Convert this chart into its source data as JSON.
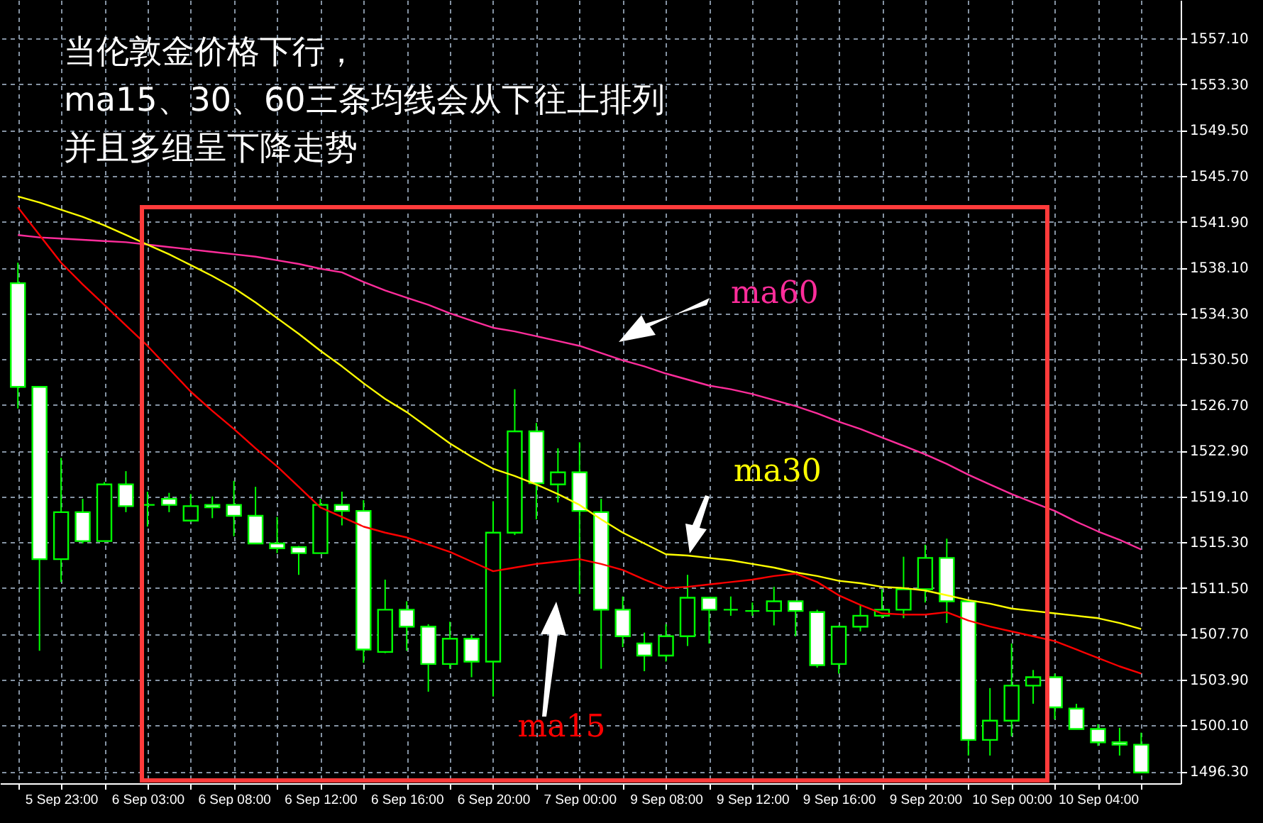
{
  "chart_data": {
    "type": "candlestick",
    "title": "当伦敦金价格下行，",
    "annotations": [
      "ma15、30、60三条均线会从下往上排列",
      "并且多组呈下降走势"
    ],
    "categories": [
      null,
      null,
      "5 Sep 23:00",
      null,
      null,
      null,
      "6 Sep 03:00",
      null,
      null,
      null,
      "6 Sep 08:00",
      null,
      null,
      null,
      "6 Sep 12:00",
      null,
      null,
      null,
      "6 Sep 16:00",
      null,
      null,
      null,
      "6 Sep 20:00",
      null,
      null,
      null,
      "7 Sep 00:00",
      null,
      null,
      null,
      "9 Sep 08:00",
      null,
      null,
      null,
      "9 Sep 12:00",
      null,
      null,
      null,
      "9 Sep 16:00",
      null,
      null,
      null,
      "9 Sep 20:00",
      null,
      null,
      null,
      "10 Sep 00:00",
      null,
      null,
      null,
      "10 Sep 04:00",
      null,
      null
    ],
    "ohlc": [
      [
        1536.8,
        1538.5,
        1526.4,
        1528.2
      ],
      [
        1528.2,
        1528.2,
        1506.3,
        1513.9
      ],
      [
        1513.9,
        1522.3,
        1512.0,
        1517.8
      ],
      [
        1517.8,
        1518.9,
        1515.2,
        1515.4
      ],
      [
        1515.4,
        1520.3,
        1515.4,
        1520.1
      ],
      [
        1520.1,
        1521.2,
        1517.8,
        1518.3
      ],
      [
        1518.4,
        1519.5,
        1516.6,
        1518.4
      ],
      [
        1518.9,
        1519.4,
        1517.8,
        1518.4
      ],
      [
        1517.1,
        1519.3,
        1517.0,
        1518.3
      ],
      [
        1518.4,
        1519.1,
        1517.3,
        1518.2
      ],
      [
        1518.4,
        1520.4,
        1515.8,
        1517.5
      ],
      [
        1517.5,
        1519.9,
        1515.2,
        1515.2
      ],
      [
        1515.2,
        1517.4,
        1514.4,
        1514.8
      ],
      [
        1514.9,
        1515.0,
        1512.6,
        1514.4
      ],
      [
        1514.4,
        1518.9,
        1514.4,
        1518.4
      ],
      [
        1518.4,
        1519.5,
        1516.7,
        1517.9
      ],
      [
        1517.9,
        1518.8,
        1505.3,
        1506.4
      ],
      [
        1506.2,
        1512.2,
        1506.1,
        1509.7
      ],
      [
        1509.7,
        1510.4,
        1506.3,
        1508.3
      ],
      [
        1508.3,
        1508.5,
        1502.9,
        1505.2
      ],
      [
        1505.2,
        1508.7,
        1504.8,
        1507.3
      ],
      [
        1507.3,
        1507.6,
        1504.1,
        1505.4
      ],
      [
        1505.4,
        1518.7,
        1502.5,
        1516.1
      ],
      [
        1516.1,
        1528.0,
        1515.9,
        1524.5
      ],
      [
        1524.5,
        1525.2,
        1517.2,
        1520.2
      ],
      [
        1520.1,
        1523.1,
        1518.6,
        1521.1
      ],
      [
        1521.1,
        1523.6,
        1511.0,
        1517.9
      ],
      [
        1517.8,
        1518.9,
        1504.8,
        1509.7
      ],
      [
        1509.7,
        1510.8,
        1506.6,
        1507.5
      ],
      [
        1506.9,
        1507.8,
        1504.6,
        1505.9
      ],
      [
        1505.9,
        1508.5,
        1505.4,
        1507.5
      ],
      [
        1507.5,
        1512.6,
        1506.7,
        1510.7
      ],
      [
        1510.7,
        1510.7,
        1506.9,
        1509.7
      ],
      [
        1509.7,
        1510.8,
        1509.2,
        1509.7
      ],
      [
        1509.6,
        1510.3,
        1509.2,
        1509.6
      ],
      [
        1509.6,
        1511.6,
        1508.4,
        1510.4
      ],
      [
        1510.4,
        1510.4,
        1507.5,
        1509.6
      ],
      [
        1509.5,
        1509.7,
        1504.9,
        1505.1
      ],
      [
        1505.2,
        1508.4,
        1504.4,
        1508.3
      ],
      [
        1508.3,
        1510.1,
        1507.9,
        1509.2
      ],
      [
        1509.2,
        1511.4,
        1509.0,
        1509.7
      ],
      [
        1509.7,
        1514.1,
        1509.0,
        1511.4
      ],
      [
        1511.4,
        1515.1,
        1510.3,
        1514.0
      ],
      [
        1514.0,
        1515.6,
        1508.6,
        1510.4
      ],
      [
        1510.4,
        1510.4,
        1497.6,
        1498.9
      ],
      [
        1498.9,
        1503.2,
        1497.6,
        1500.5
      ],
      [
        1500.5,
        1506.9,
        1499.2,
        1503.4
      ],
      [
        1503.4,
        1504.7,
        1501.9,
        1504.1
      ],
      [
        1504.1,
        1504.4,
        1500.6,
        1501.6
      ],
      [
        1501.5,
        1501.9,
        1499.8,
        1499.8
      ],
      [
        1499.8,
        1500.2,
        1498.4,
        1498.7
      ],
      [
        1498.7,
        1499.9,
        1497.6,
        1498.5
      ],
      [
        1498.5,
        1499.5,
        1496.2,
        1496.2
      ]
    ],
    "series": [
      {
        "name": "ma60",
        "type": "line",
        "color": "#ff2d9b",
        "values": [
          1540.8,
          1540.6,
          1540.5,
          1540.4,
          1540.3,
          1540.2,
          1540.0,
          1539.8,
          1539.6,
          1539.4,
          1539.2,
          1539.0,
          1538.7,
          1538.4,
          1538.0,
          1537.7,
          1536.9,
          1536.2,
          1535.6,
          1535.0,
          1534.3,
          1533.7,
          1533.1,
          1532.8,
          1532.4,
          1532.0,
          1531.6,
          1531.0,
          1530.4,
          1529.9,
          1529.3,
          1528.8,
          1528.3,
          1528.0,
          1527.6,
          1527.1,
          1526.6,
          1526.0,
          1525.3,
          1524.7,
          1524.0,
          1523.3,
          1522.6,
          1521.8,
          1520.9,
          1520.1,
          1519.3,
          1518.6,
          1517.9,
          1517.0,
          1516.2,
          1515.5,
          1514.7
        ]
      },
      {
        "name": "ma30",
        "type": "line",
        "color": "#ffff00",
        "values": [
          1544.0,
          1543.5,
          1542.9,
          1542.3,
          1541.6,
          1540.8,
          1540.0,
          1539.2,
          1538.3,
          1537.4,
          1536.4,
          1535.2,
          1533.9,
          1532.6,
          1531.2,
          1529.9,
          1528.5,
          1527.2,
          1526.1,
          1524.8,
          1523.5,
          1522.4,
          1521.4,
          1520.8,
          1520.1,
          1519.3,
          1518.4,
          1517.2,
          1516.1,
          1515.2,
          1514.3,
          1514.2,
          1514.0,
          1513.8,
          1513.5,
          1513.2,
          1512.8,
          1512.5,
          1512.1,
          1511.9,
          1511.6,
          1511.5,
          1511.3,
          1510.9,
          1510.5,
          1510.2,
          1509.8,
          1509.6,
          1509.4,
          1509.2,
          1509.0,
          1508.6,
          1508.1
        ]
      },
      {
        "name": "ma15",
        "type": "line",
        "color": "#ff0000",
        "values": [
          1543.1,
          1540.8,
          1538.5,
          1536.7,
          1535.0,
          1533.3,
          1531.6,
          1529.7,
          1527.8,
          1526.2,
          1524.7,
          1523.1,
          1521.6,
          1519.9,
          1518.2,
          1517.4,
          1516.6,
          1516.1,
          1515.7,
          1515.1,
          1514.5,
          1513.7,
          1512.9,
          1513.2,
          1513.5,
          1513.7,
          1513.9,
          1513.5,
          1513.0,
          1512.2,
          1511.5,
          1511.6,
          1511.8,
          1512.0,
          1512.2,
          1512.5,
          1512.7,
          1512.0,
          1510.9,
          1510.1,
          1509.4,
          1509.3,
          1509.3,
          1509.5,
          1508.8,
          1508.3,
          1507.9,
          1507.5,
          1507.1,
          1506.4,
          1505.7,
          1505.0,
          1504.4
        ]
      }
    ],
    "ylim": [
      1495.3,
      1560.3
    ],
    "yticks": [
      {
        "value": 1496.3,
        "label": "1496.30"
      },
      {
        "value": 1500.1,
        "label": "1500.10"
      },
      {
        "value": 1503.9,
        "label": "1503.90"
      },
      {
        "value": 1507.7,
        "label": "1507.70"
      },
      {
        "value": 1511.5,
        "label": "1511.50"
      },
      {
        "value": 1515.3,
        "label": "1515.30"
      },
      {
        "value": 1519.1,
        "label": "1519.10"
      },
      {
        "value": 1522.9,
        "label": "1522.90"
      },
      {
        "value": 1526.7,
        "label": "1526.70"
      },
      {
        "value": 1530.5,
        "label": "1530.50"
      },
      {
        "value": 1534.3,
        "label": "1534.30"
      },
      {
        "value": 1538.1,
        "label": "1538.10"
      },
      {
        "value": 1541.9,
        "label": "1541.90"
      },
      {
        "value": 1545.7,
        "label": "1545.70"
      },
      {
        "value": 1549.5,
        "label": "1549.50"
      },
      {
        "value": 1553.3,
        "label": "1553.30"
      },
      {
        "value": 1557.1,
        "label": "1557.10"
      }
    ],
    "grid": true
  }
}
